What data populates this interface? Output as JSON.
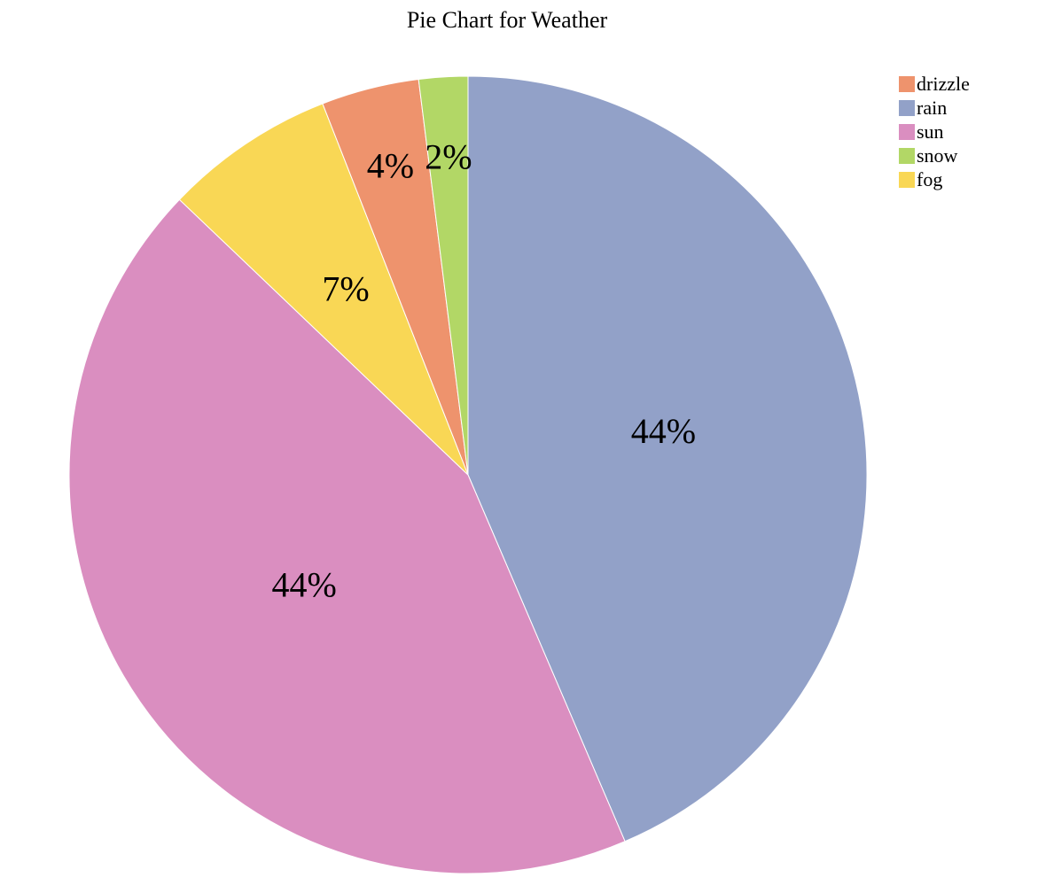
{
  "chart_data": {
    "type": "pie",
    "title": "Pie Chart for Weather",
    "legend_position": "top-right",
    "slices": [
      {
        "label": "rain",
        "value": 44,
        "display": "44%",
        "color": "#92a1c8"
      },
      {
        "label": "sun",
        "value": 44,
        "display": "44%",
        "color": "#da8ec0"
      },
      {
        "label": "fog",
        "value": 7,
        "display": "7%",
        "color": "#f9d755"
      },
      {
        "label": "drizzle",
        "value": 4,
        "display": "4%",
        "color": "#ee936d"
      },
      {
        "label": "snow",
        "value": 2,
        "display": "2%",
        "color": "#b2d766"
      }
    ],
    "legend": [
      {
        "label": "drizzle",
        "color": "#ee936d"
      },
      {
        "label": "rain",
        "color": "#92a1c8"
      },
      {
        "label": "sun",
        "color": "#da8ec0"
      },
      {
        "label": "snow",
        "color": "#b2d766"
      },
      {
        "label": "fog",
        "color": "#f9d755"
      }
    ]
  }
}
